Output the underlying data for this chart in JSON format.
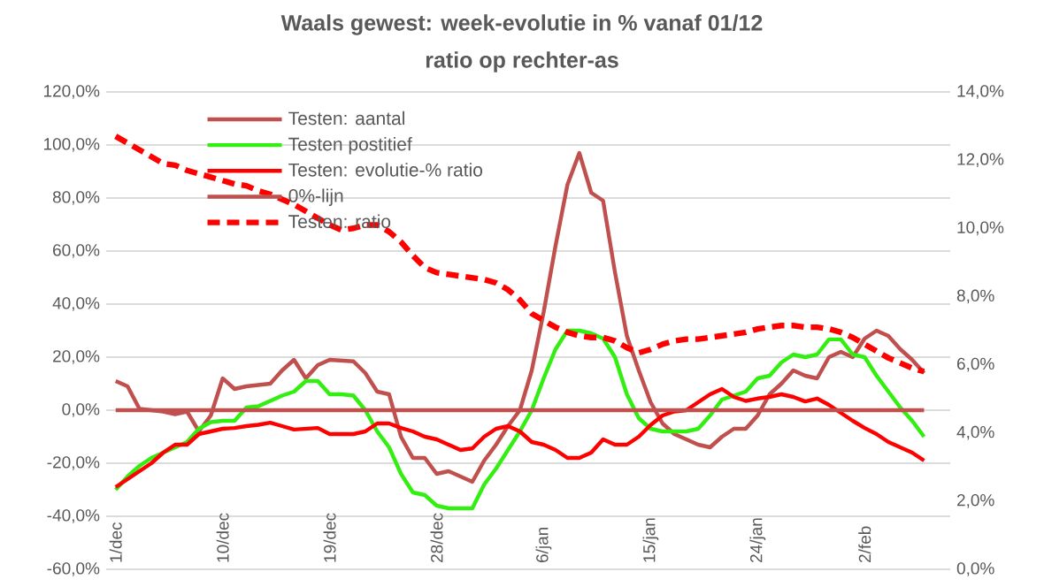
{
  "chart_data": {
    "type": "line",
    "title": "Waals gewest: week-evolutie in % vanaf 01/12",
    "subtitle": "ratio op rechter-as",
    "categories": [
      "1/dec",
      null,
      null,
      null,
      null,
      null,
      null,
      null,
      null,
      "10/dec",
      null,
      null,
      null,
      null,
      null,
      null,
      null,
      null,
      "19/dec",
      null,
      null,
      null,
      null,
      null,
      null,
      null,
      null,
      "28/dec",
      null,
      null,
      null,
      null,
      null,
      null,
      null,
      null,
      "6/jan",
      null,
      null,
      null,
      null,
      null,
      null,
      null,
      null,
      "15/jan",
      null,
      null,
      null,
      null,
      null,
      null,
      null,
      null,
      "24/jan",
      null,
      null,
      null,
      null,
      null,
      null,
      null,
      null,
      "2/feb",
      null,
      null,
      null,
      null,
      null
    ],
    "series": [
      {
        "name": "Testen: aantal",
        "color": "#c0504d",
        "values": [
          11,
          9,
          0.5,
          0,
          -0.5,
          -1.5,
          -0.5,
          -8,
          -2,
          12,
          8,
          9,
          9.5,
          10,
          15,
          19,
          12,
          17,
          19,
          18.7,
          18.4,
          14,
          7,
          6,
          -10,
          -18,
          -18,
          -24,
          -23,
          -25,
          -27,
          -19,
          -13,
          -6,
          0,
          15,
          37,
          62,
          85,
          97,
          82,
          79,
          52,
          28,
          15,
          3,
          -5,
          -9,
          -11,
          -13,
          -14,
          -10,
          -7,
          -7,
          -2,
          6,
          10,
          15,
          13,
          12,
          20,
          22,
          20,
          27,
          30,
          28,
          23,
          19,
          14
        ]
      },
      {
        "name": "Testen postitief",
        "color": "#33ee11",
        "values": [
          -30,
          -25,
          -21,
          -18,
          -16,
          -14,
          -12,
          -7,
          -4.5,
          -4,
          -4,
          1,
          1.5,
          3.5,
          5.5,
          7,
          11,
          11,
          6,
          6,
          5.5,
          0,
          -8,
          -14,
          -24,
          -31,
          -32,
          -36,
          -37,
          -37,
          -37,
          -28,
          -22,
          -15,
          -8,
          0,
          12,
          23,
          30,
          30,
          29,
          27,
          20,
          6,
          -3,
          -7,
          -8,
          -8,
          -8,
          -7,
          -2,
          4,
          5.5,
          7,
          12,
          13,
          18,
          21,
          20,
          21,
          26.7,
          26.7,
          21,
          20,
          13,
          7,
          1,
          -4,
          -10
        ]
      },
      {
        "name": "Testen: evolutie-% ratio",
        "color": "#ff0000",
        "values": [
          -29,
          -26,
          -23,
          -20,
          -16,
          -13,
          -13,
          -9,
          -8,
          -7,
          -6.7,
          -6,
          -5.5,
          -4.7,
          -6,
          -7.3,
          -7,
          -6.7,
          -9,
          -9,
          -9,
          -8,
          -5,
          -5,
          -6.7,
          -8,
          -10,
          -11,
          -13,
          -15,
          -14.4,
          -10,
          -7,
          -6,
          -8,
          -12,
          -13,
          -15,
          -18,
          -18,
          -16,
          -11,
          -13,
          -13,
          -10,
          -5.6,
          -2,
          -0.5,
          0,
          3,
          6,
          8,
          5,
          3.5,
          4.4,
          5,
          6,
          5,
          3.3,
          4.4,
          2,
          -1,
          -4,
          -6.7,
          -9,
          -12,
          -14,
          -16,
          -19
        ]
      },
      {
        "name": "0%-lijn",
        "color": "#c0504d",
        "values": [
          0,
          0,
          0,
          0,
          0,
          0,
          0,
          0,
          0,
          0,
          0,
          0,
          0,
          0,
          0,
          0,
          0,
          0,
          0,
          0,
          0,
          0,
          0,
          0,
          0,
          0,
          0,
          0,
          0,
          0,
          0,
          0,
          0,
          0,
          0,
          0,
          0,
          0,
          0,
          0,
          0,
          0,
          0,
          0,
          0,
          0,
          0,
          0,
          0,
          0,
          0,
          0,
          0,
          0,
          0,
          0,
          0,
          0,
          0,
          0,
          0,
          0,
          0,
          0,
          0,
          0,
          0,
          0,
          0
        ]
      },
      {
        "name": "Testen: ratio",
        "color": "#ff0000",
        "axis": "y2",
        "line_style": "dashed",
        "values": [
          12.7,
          12.5,
          12.3,
          12.1,
          11.9,
          11.85,
          11.7,
          11.6,
          11.5,
          11.4,
          11.3,
          11.25,
          11.1,
          11.0,
          10.85,
          10.7,
          10.5,
          10.3,
          10.1,
          9.95,
          10.0,
          10.1,
          10.1,
          9.9,
          9.6,
          9.2,
          8.85,
          8.7,
          8.65,
          8.6,
          8.55,
          8.5,
          8.4,
          8.2,
          7.9,
          7.5,
          7.3,
          7.1,
          6.95,
          6.85,
          6.8,
          6.8,
          6.7,
          6.5,
          6.35,
          6.45,
          6.6,
          6.7,
          6.75,
          6.75,
          6.8,
          6.85,
          6.9,
          6.95,
          7.05,
          7.1,
          7.15,
          7.15,
          7.1,
          7.1,
          7.05,
          6.95,
          6.8,
          6.6,
          6.4,
          6.2,
          6.05,
          5.9,
          5.8
        ]
      }
    ],
    "ylim": [
      -60,
      120
    ],
    "yticks": [
      {
        "value": -60,
        "label": "-60,0%"
      },
      {
        "value": -40,
        "label": "-40,0%"
      },
      {
        "value": -20,
        "label": "-20,0%"
      },
      {
        "value": 0,
        "label": "0,0%"
      },
      {
        "value": 20,
        "label": "20,0%"
      },
      {
        "value": 40,
        "label": "40,0%"
      },
      {
        "value": 60,
        "label": "60,0%"
      },
      {
        "value": 80,
        "label": "80,0%"
      },
      {
        "value": 100,
        "label": "100,0%"
      },
      {
        "value": 120,
        "label": "120,0%"
      }
    ],
    "y2lim": [
      0,
      14
    ],
    "y2ticks": [
      {
        "value": 0,
        "label": "0,0%"
      },
      {
        "value": 2,
        "label": "2,0%"
      },
      {
        "value": 4,
        "label": "4,0%"
      },
      {
        "value": 6,
        "label": "6,0%"
      },
      {
        "value": 8,
        "label": "8,0%"
      },
      {
        "value": 10,
        "label": "10,0%"
      },
      {
        "value": 12,
        "label": "12,0%"
      },
      {
        "value": 14,
        "label": "14,0%"
      }
    ],
    "grid": "y",
    "legend": "top left",
    "marker": "none",
    "line_style": "solid"
  }
}
